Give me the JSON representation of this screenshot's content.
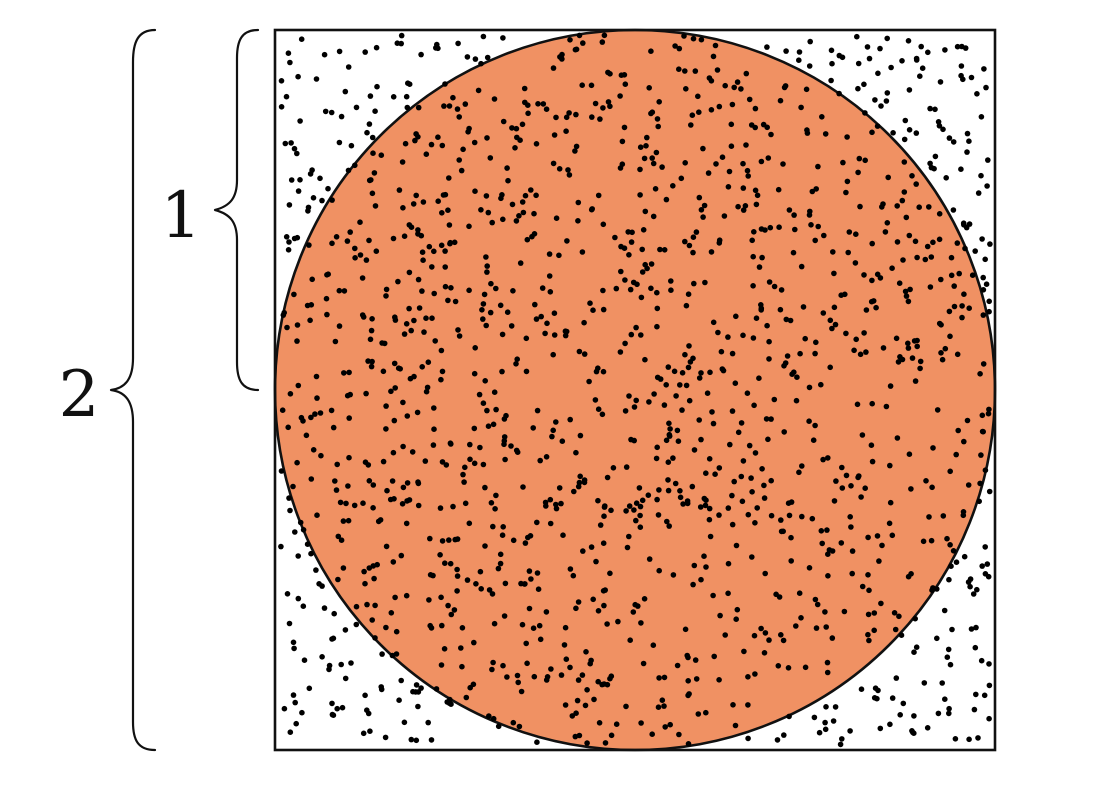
{
  "diagram": {
    "labels": {
      "inner_brace": "1",
      "outer_brace": "2"
    },
    "colors": {
      "circle_fill": "#F09163",
      "outline": "#111111",
      "point": "#000000",
      "background": "#FFFFFF"
    },
    "shapes": {
      "outer": "square",
      "inner": "inscribed-circle",
      "marks": "random-points"
    },
    "point_count": 1500
  }
}
